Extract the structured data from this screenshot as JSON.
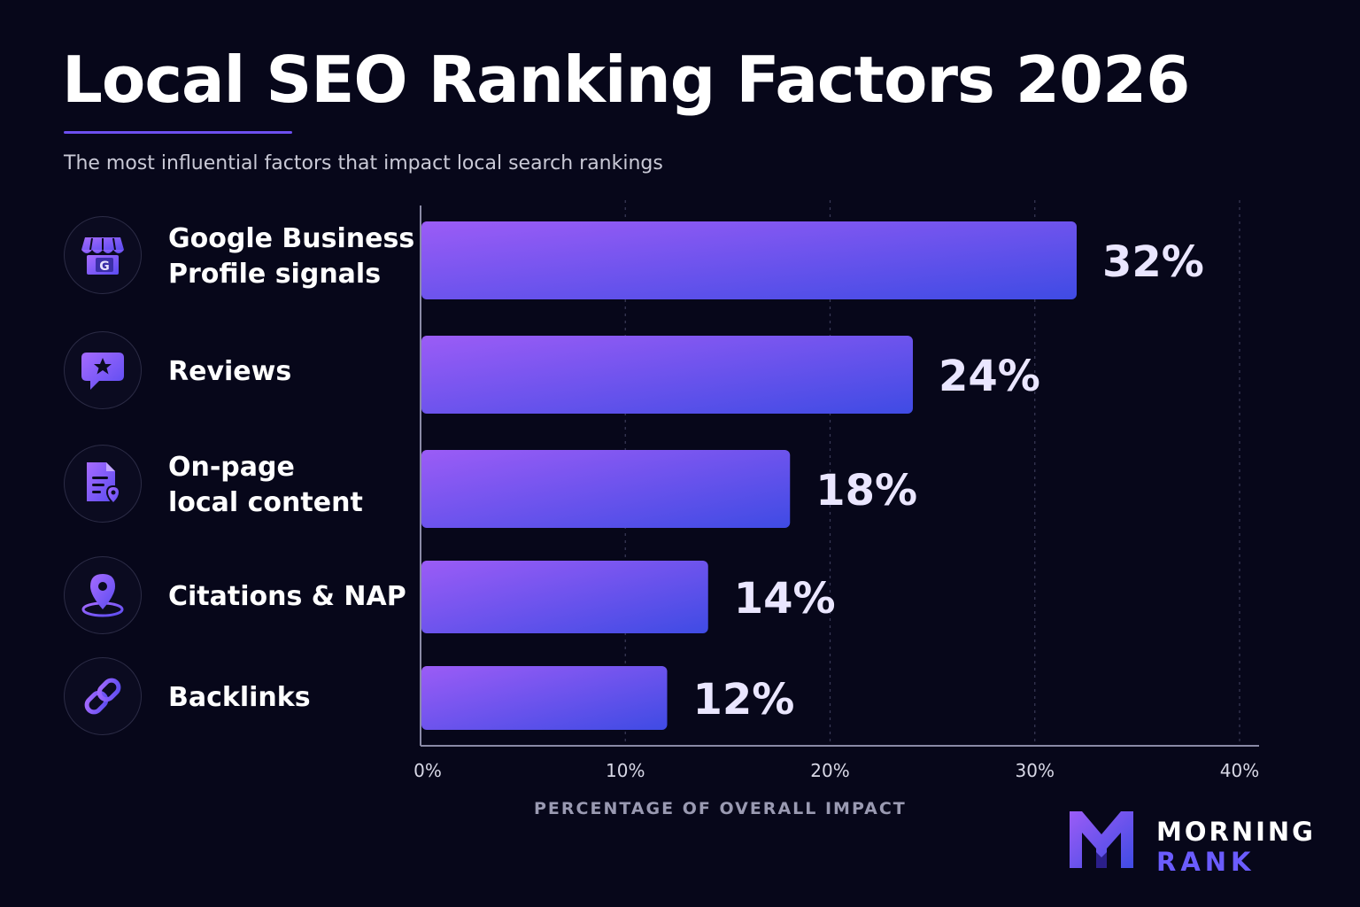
{
  "title": "Local SEO Ranking Factors 2026",
  "subtitle": "The most influential factors that impact local search rankings",
  "factors": [
    {
      "label": "Google Business\nProfile signals",
      "icon": "storefront-g-icon"
    },
    {
      "label": "Reviews",
      "icon": "review-star-bubble-icon"
    },
    {
      "label": "On-page\nlocal content",
      "icon": "document-location-icon"
    },
    {
      "label": "Citations & NAP",
      "icon": "map-pin-icon"
    },
    {
      "label": "Backlinks",
      "icon": "chain-link-icon"
    }
  ],
  "brand": {
    "top": "MORNING",
    "bottom": "RANK"
  },
  "colors": {
    "background": "#07071a",
    "bar_gradient_start": "#9b5cf6",
    "bar_gradient_end": "#3f4be4",
    "value_label": "#eae6ff",
    "accent": "#6d4ff0"
  },
  "chart_data": {
    "type": "bar",
    "orientation": "horizontal",
    "categories": [
      "Google Business Profile signals",
      "Reviews",
      "On-page local content",
      "Citations & NAP",
      "Backlinks"
    ],
    "values": [
      32,
      24,
      18,
      14,
      12
    ],
    "value_labels": [
      "32%",
      "24%",
      "18%",
      "14%",
      "12%"
    ],
    "xlabel": "PERCENTAGE OF OVERALL IMPACT",
    "xlim": [
      0,
      40
    ],
    "xticks": [
      0,
      10,
      20,
      30,
      40
    ],
    "xtick_labels": [
      "0%",
      "10%",
      "20%",
      "30%",
      "40%"
    ],
    "grid": "vertical dashed"
  }
}
